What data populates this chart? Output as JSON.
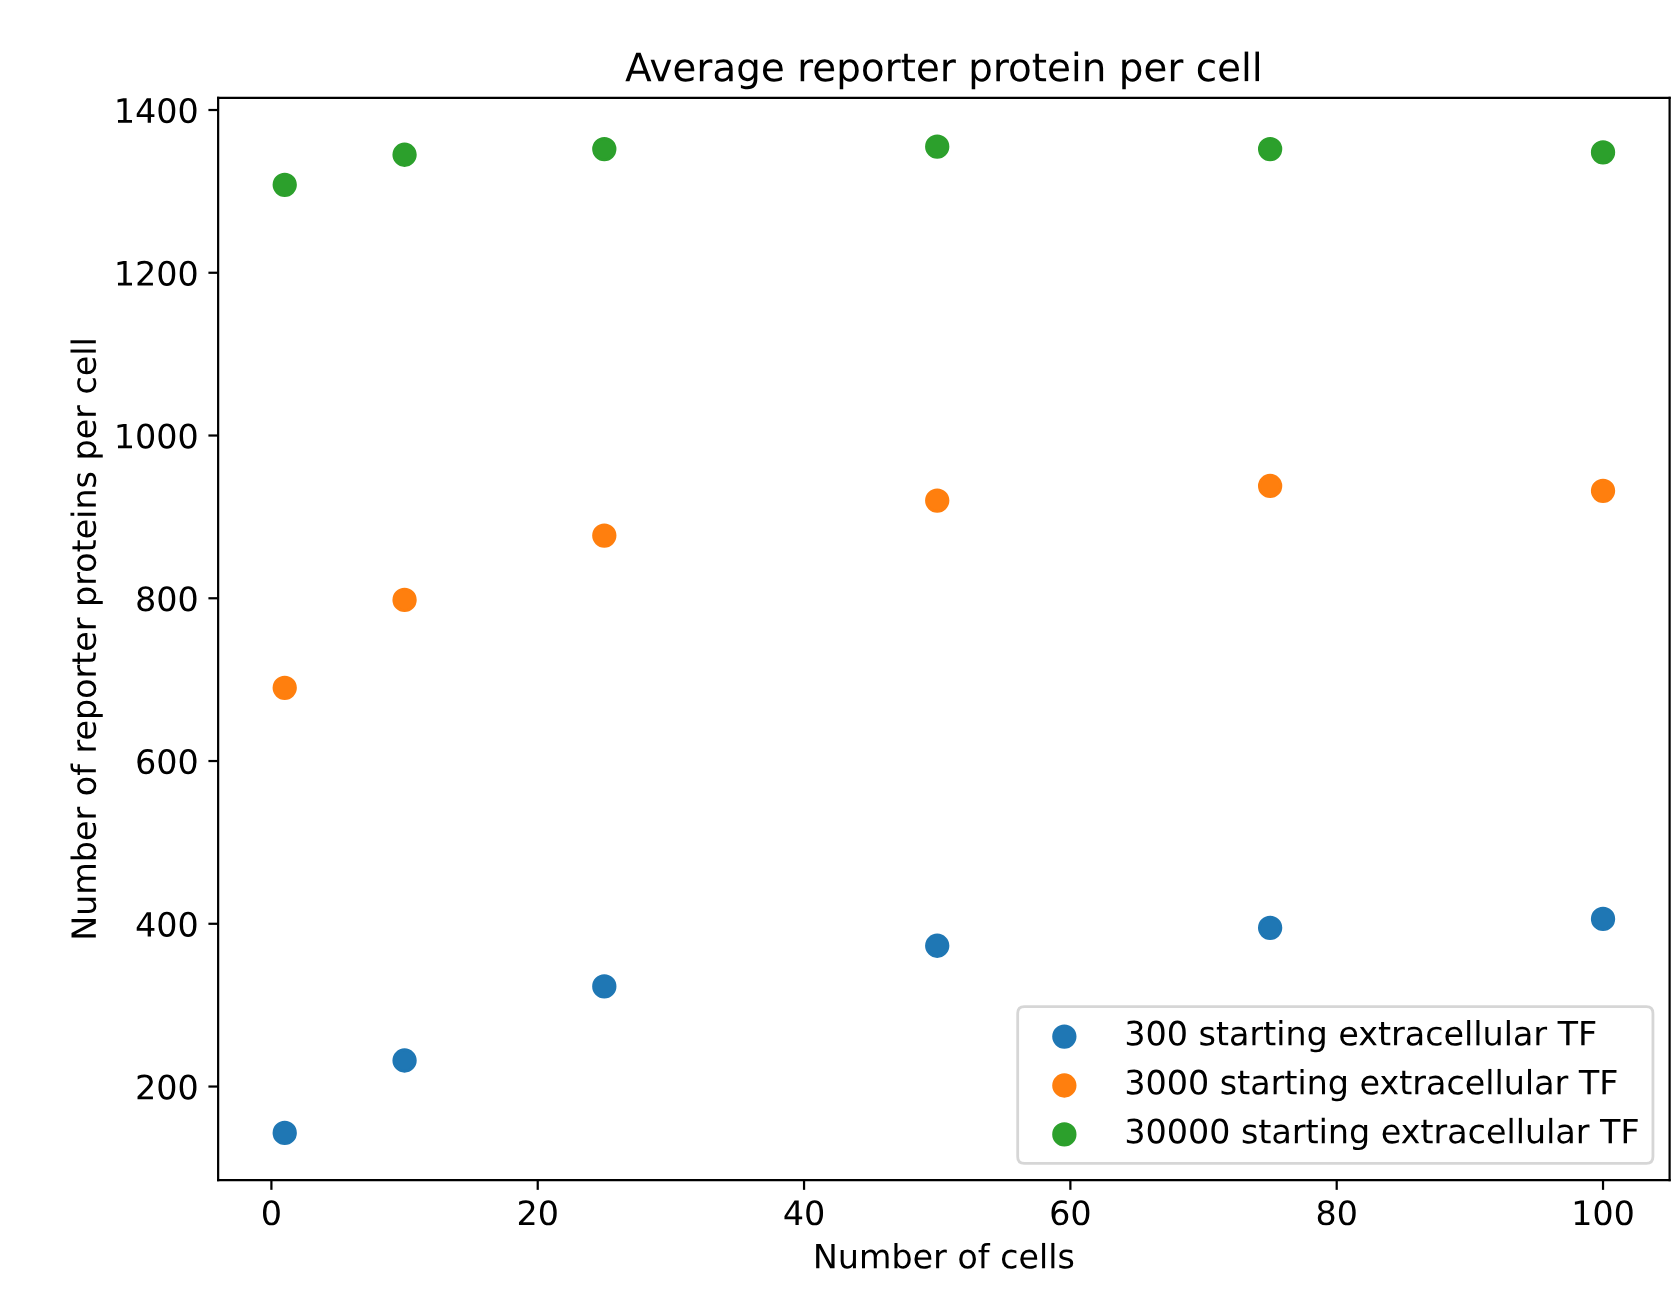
{
  "chart_data": {
    "type": "scatter",
    "title": "Average reporter protein per cell",
    "xlabel": "Number of cells",
    "ylabel": "Number of reporter proteins per cell",
    "x": [
      1,
      10,
      25,
      50,
      75,
      100
    ],
    "series": [
      {
        "name": "300 starting extracellular TF",
        "color": "#1f77b4",
        "values": [
          143,
          232,
          323,
          373,
          395,
          406
        ]
      },
      {
        "name": "3000 starting extracellular TF",
        "color": "#ff7f0e",
        "values": [
          690,
          798,
          877,
          920,
          938,
          932
        ]
      },
      {
        "name": "30000 starting extracellular TF",
        "color": "#2ca02c",
        "values": [
          1308,
          1345,
          1352,
          1355,
          1352,
          1348
        ]
      }
    ],
    "xlim": [
      -4,
      105
    ],
    "ylim": [
      85,
      1415
    ],
    "xticks": [
      0,
      20,
      40,
      60,
      80,
      100
    ],
    "yticks": [
      200,
      400,
      600,
      800,
      1000,
      1200,
      1400
    ],
    "marker": "circle",
    "legend": "bottom right",
    "grid": false
  }
}
